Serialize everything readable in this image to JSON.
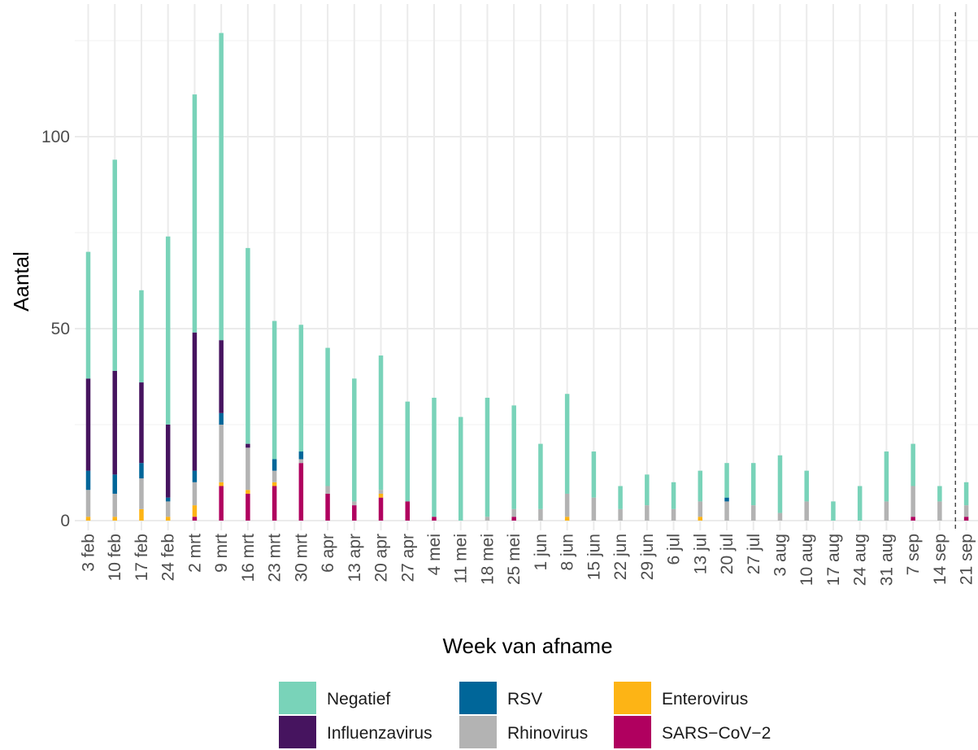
{
  "chart_data": {
    "type": "bar",
    "stacked": true,
    "xlabel": "Week van afname",
    "ylabel": "Aantal",
    "ylim": [
      0,
      128
    ],
    "yticks": [
      0,
      50,
      100
    ],
    "grid": true,
    "legend_position": "bottom",
    "dashed_vline_between": [
      "14 sep",
      "21 sep"
    ],
    "categories": [
      "3 feb",
      "10 feb",
      "17 feb",
      "24 feb",
      "2 mrt",
      "9 mrt",
      "16 mrt",
      "23 mrt",
      "30 mrt",
      "6 apr",
      "13 apr",
      "20 apr",
      "27 apr",
      "4 mei",
      "11 mei",
      "18 mei",
      "25 mei",
      "1 jun",
      "8 jun",
      "15 jun",
      "22 jun",
      "29 jun",
      "6 jul",
      "13 jul",
      "20 jul",
      "27 jul",
      "3 aug",
      "10 aug",
      "17 aug",
      "24 aug",
      "31 aug",
      "7 sep",
      "14 sep",
      "21 sep"
    ],
    "stack_order": [
      "SARS−CoV−2",
      "Enterovirus",
      "Rhinovirus",
      "RSV",
      "Influenzavirus",
      "Negatief"
    ],
    "series": [
      {
        "name": "SARS−CoV−2",
        "color": "#B0005F",
        "values": [
          0,
          0,
          0,
          0,
          1,
          9,
          7,
          9,
          15,
          7,
          4,
          6,
          5,
          1,
          0,
          0,
          1,
          0,
          0,
          0,
          0,
          0,
          0,
          0,
          0,
          0,
          0,
          0,
          0,
          0,
          0,
          1,
          0,
          1
        ]
      },
      {
        "name": "Enterovirus",
        "color": "#FDB415",
        "values": [
          1,
          1,
          3,
          1,
          3,
          1,
          1,
          1,
          0,
          0,
          0,
          1,
          0,
          0,
          0,
          0,
          0,
          0,
          1,
          0,
          0,
          0,
          0,
          1,
          0,
          0,
          0,
          0,
          0,
          0,
          0,
          0,
          0,
          0
        ]
      },
      {
        "name": "Rhinovirus",
        "color": "#B3B3B3",
        "values": [
          7,
          6,
          8,
          4,
          6,
          15,
          11,
          3,
          1,
          2,
          1,
          1,
          0,
          0,
          0,
          1,
          2,
          3,
          6,
          6,
          3,
          4,
          3,
          4,
          5,
          4,
          2,
          5,
          0,
          0,
          5,
          8,
          5,
          3
        ]
      },
      {
        "name": "RSV",
        "color": "#006699",
        "values": [
          5,
          5,
          4,
          1,
          3,
          3,
          0,
          3,
          2,
          0,
          0,
          0,
          0,
          0,
          0,
          0,
          0,
          0,
          0,
          0,
          0,
          0,
          0,
          0,
          1,
          0,
          0,
          0,
          0,
          0,
          0,
          0,
          0,
          0
        ]
      },
      {
        "name": "Influenzavirus",
        "color": "#46145F",
        "values": [
          24,
          27,
          21,
          19,
          36,
          19,
          1,
          0,
          0,
          0,
          0,
          0,
          0,
          0,
          0,
          0,
          0,
          0,
          0,
          0,
          0,
          0,
          0,
          0,
          0,
          0,
          0,
          0,
          0,
          0,
          0,
          0,
          0,
          0
        ]
      },
      {
        "name": "Negatief",
        "color": "#79D3B9",
        "values": [
          33,
          55,
          24,
          49,
          62,
          80,
          51,
          36,
          33,
          36,
          32,
          35,
          26,
          31,
          27,
          31,
          27,
          17,
          26,
          12,
          6,
          8,
          7,
          8,
          9,
          11,
          15,
          8,
          5,
          9,
          13,
          11,
          4,
          6
        ]
      }
    ],
    "legend": [
      {
        "label": "Negatief",
        "color": "#79D3B9"
      },
      {
        "label": "RSV",
        "color": "#006699"
      },
      {
        "label": "Enterovirus",
        "color": "#FDB415"
      },
      {
        "label": "Influenzavirus",
        "color": "#46145F"
      },
      {
        "label": "Rhinovirus",
        "color": "#B3B3B3"
      },
      {
        "label": "SARS−CoV−2",
        "color": "#B0005F"
      }
    ]
  }
}
